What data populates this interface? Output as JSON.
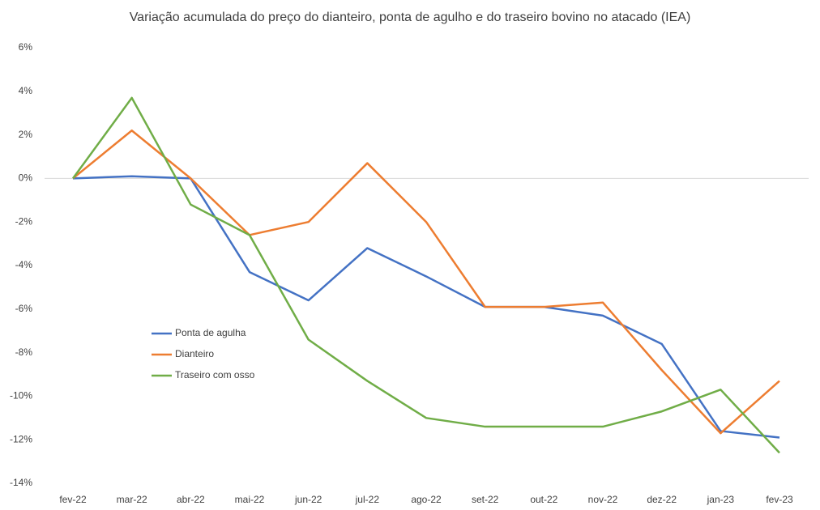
{
  "chart_data": {
    "type": "line",
    "title": "Variação acumulada do preço do dianteiro, ponta de agulho e do traseiro bovino no atacado (IEA)",
    "categories": [
      "fev-22",
      "mar-22",
      "abr-22",
      "mai-22",
      "jun-22",
      "jul-22",
      "ago-22",
      "set-22",
      "out-22",
      "nov-22",
      "dez-22",
      "jan-23",
      "fev-23"
    ],
    "series": [
      {
        "name": "Ponta de agulha",
        "color": "#4472c4",
        "values": [
          0,
          0.1,
          0,
          -4.3,
          -5.6,
          -3.2,
          -4.5,
          -5.9,
          -5.9,
          -6.3,
          -7.6,
          -11.6,
          -11.9
        ]
      },
      {
        "name": "Dianteiro",
        "color": "#ed7d31",
        "values": [
          0,
          2.2,
          0,
          -2.6,
          -2.0,
          0.7,
          -2.0,
          -5.9,
          -5.9,
          -5.7,
          -8.8,
          -11.7,
          -9.3
        ]
      },
      {
        "name": "Traseiro com osso",
        "color": "#70ad47",
        "values": [
          0,
          3.7,
          -1.2,
          -2.6,
          -7.4,
          -9.3,
          -11.0,
          -11.4,
          -11.4,
          -11.4,
          -10.7,
          -9.7,
          -12.6
        ]
      }
    ],
    "ylim": [
      -14,
      6
    ],
    "yticks": [
      {
        "value": 6,
        "label": "6%"
      },
      {
        "value": 4,
        "label": "4%"
      },
      {
        "value": 2,
        "label": "2%"
      },
      {
        "value": 0,
        "label": "0%"
      },
      {
        "value": -2,
        "label": "-2%"
      },
      {
        "value": -4,
        "label": "-4%"
      },
      {
        "value": -6,
        "label": "-6%"
      },
      {
        "value": -8,
        "label": "-8%"
      },
      {
        "value": -10,
        "label": "-10%"
      },
      {
        "value": -12,
        "label": "-12%"
      },
      {
        "value": -14,
        "label": "-14%"
      }
    ],
    "grid": false,
    "legend": "left"
  }
}
